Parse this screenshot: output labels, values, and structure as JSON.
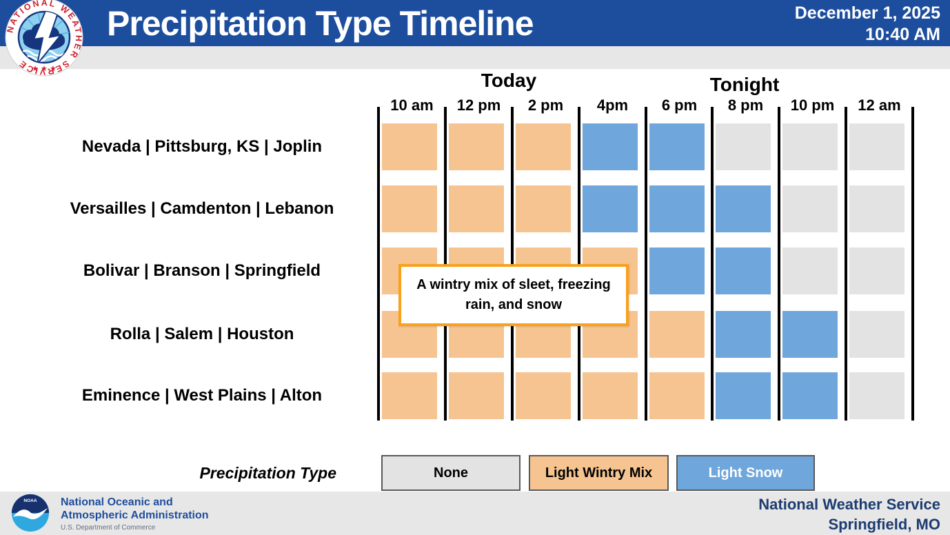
{
  "header": {
    "title": "Precipitation Type Timeline",
    "date": "December 1, 2025",
    "time": "10:40 AM",
    "bg_color": "#1d4e9e"
  },
  "chart_data": {
    "type": "heatmap",
    "title": "Precipitation Type Timeline",
    "x_axis": "time of day",
    "period_labels": [
      "Today",
      "Tonight"
    ],
    "columns": [
      "10 am",
      "12 pm",
      "2 pm",
      "4pm",
      "6 pm",
      "8 pm",
      "10 pm",
      "12 am"
    ],
    "rows": [
      {
        "location": "Nevada | Pittsburg, KS | Joplin",
        "values": [
          "Light Wintry Mix",
          "Light Wintry Mix",
          "Light Wintry Mix",
          "Light Snow",
          "Light Snow",
          "None",
          "None",
          "None"
        ]
      },
      {
        "location": "Versailles | Camdenton | Lebanon",
        "values": [
          "Light Wintry Mix",
          "Light Wintry Mix",
          "Light Wintry Mix",
          "Light Snow",
          "Light Snow",
          "Light Snow",
          "None",
          "None"
        ]
      },
      {
        "location": "Bolivar | Branson | Springfield",
        "values": [
          "Light Wintry Mix",
          "Light Wintry Mix",
          "Light Wintry Mix",
          "Light Wintry Mix",
          "Light Snow",
          "Light Snow",
          "None",
          "None"
        ]
      },
      {
        "location": "Rolla | Salem | Houston",
        "values": [
          "Light Wintry Mix",
          "Light Wintry Mix",
          "Light Wintry Mix",
          "Light Wintry Mix",
          "Light Wintry Mix",
          "Light Snow",
          "Light Snow",
          "None"
        ]
      },
      {
        "location": "Eminence | West Plains | Alton",
        "values": [
          "Light Wintry Mix",
          "Light Wintry Mix",
          "Light Wintry Mix",
          "Light Wintry Mix",
          "Light Wintry Mix",
          "Light Snow",
          "Light Snow",
          "None"
        ]
      }
    ],
    "annotation": "A wintry mix of sleet, freezing rain, and snow",
    "legend": {
      "title": "Precipitation Type",
      "entries": [
        {
          "label": "None",
          "color": "#e3e3e3",
          "text_color": "#000000"
        },
        {
          "label": "Light Wintry Mix",
          "color": "#f6c490",
          "text_color": "#000000"
        },
        {
          "label": "Light Snow",
          "color": "#6fa6db",
          "text_color": "#ffffff"
        }
      ]
    }
  },
  "footer": {
    "agency_line1": "National Oceanic and",
    "agency_line2": "Atmospheric Administration",
    "department": "U.S. Department of Commerce",
    "office_line1": "National Weather Service",
    "office_line2": "Springfield, MO"
  }
}
